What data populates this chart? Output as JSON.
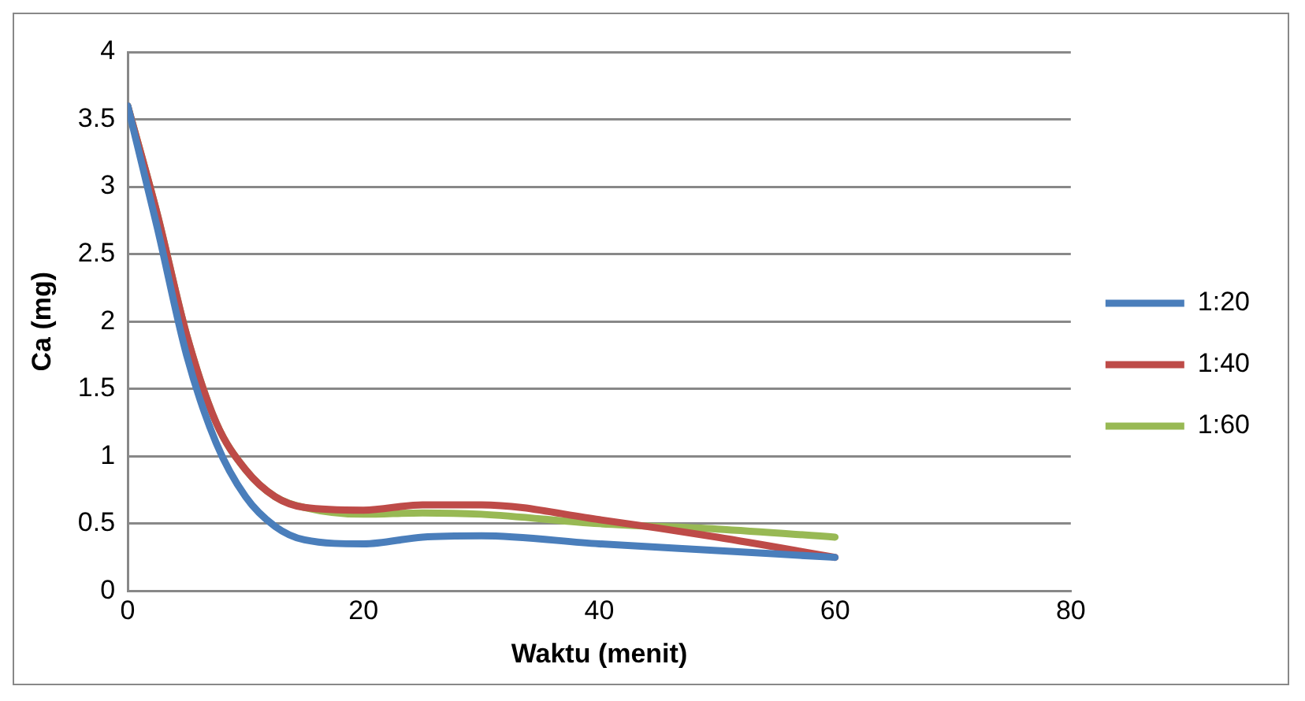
{
  "chart_data": {
    "type": "line",
    "xlabel": "Waktu (menit)",
    "ylabel": "Ca (mg)",
    "xlim": [
      0,
      80
    ],
    "xticks": [
      0,
      20,
      40,
      60,
      80
    ],
    "ylim": [
      0,
      4
    ],
    "yticks": [
      0,
      0.5,
      1,
      1.5,
      2,
      2.5,
      3,
      3.5,
      4
    ],
    "grid": "y",
    "legend": "right",
    "marker": "none",
    "line_style": "solid",
    "x": [
      0,
      2.5,
      5,
      7.5,
      10,
      12.5,
      15,
      20,
      25,
      30,
      40,
      50,
      60
    ],
    "series": [
      {
        "name": "1:20",
        "color": "#4a7ebb",
        "values": [
          3.6,
          2.7,
          1.75,
          1.1,
          0.7,
          0.48,
          0.38,
          0.35,
          0.4,
          0.41,
          0.35,
          0.3,
          0.25
        ]
      },
      {
        "name": "1:40",
        "color": "#be4b48",
        "values": [
          3.6,
          2.8,
          1.9,
          1.25,
          0.9,
          0.7,
          0.62,
          0.6,
          0.64,
          0.64,
          0.53,
          0.4,
          0.25
        ]
      },
      {
        "name": "1:60",
        "color": "#98b954",
        "values": [
          3.6,
          2.8,
          1.9,
          1.25,
          0.9,
          0.7,
          0.62,
          0.57,
          0.58,
          0.57,
          0.5,
          0.46,
          0.4
        ]
      }
    ]
  }
}
